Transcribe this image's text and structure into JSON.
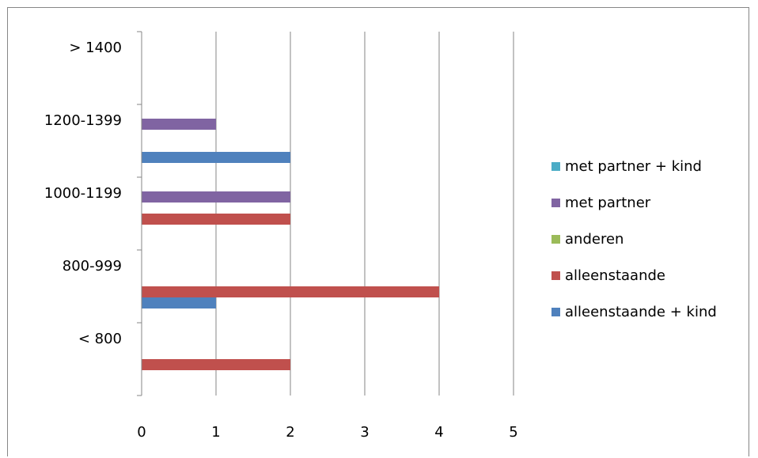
{
  "chart_data": {
    "type": "bar",
    "orientation": "horizontal",
    "categories": [
      "< 800",
      "800-999",
      "1000-1199",
      "1200-1399",
      "> 1400"
    ],
    "series": [
      {
        "name": "alleenstaande + kind",
        "color": "#4F81BD",
        "values": [
          0,
          1,
          0,
          2,
          0
        ]
      },
      {
        "name": "alleenstaande",
        "color": "#C0504D",
        "values": [
          2,
          4,
          2,
          0,
          0
        ]
      },
      {
        "name": "anderen",
        "color": "#9BBB59",
        "values": [
          0,
          0,
          0,
          0,
          0
        ]
      },
      {
        "name": "met partner",
        "color": "#8064A2",
        "values": [
          0,
          0,
          2,
          1,
          0
        ]
      },
      {
        "name": "met partner + kind",
        "color": "#4BACC6",
        "values": [
          0,
          0,
          0,
          0,
          0
        ]
      }
    ],
    "xlim": [
      0,
      5
    ],
    "x_ticks": [
      "0",
      "1",
      "2",
      "3",
      "4",
      "5"
    ],
    "grid": true,
    "legend_position": "right",
    "legend_order": [
      "met partner + kind",
      "met partner",
      "anderen",
      "alleenstaande",
      "alleenstaande + kind"
    ]
  }
}
